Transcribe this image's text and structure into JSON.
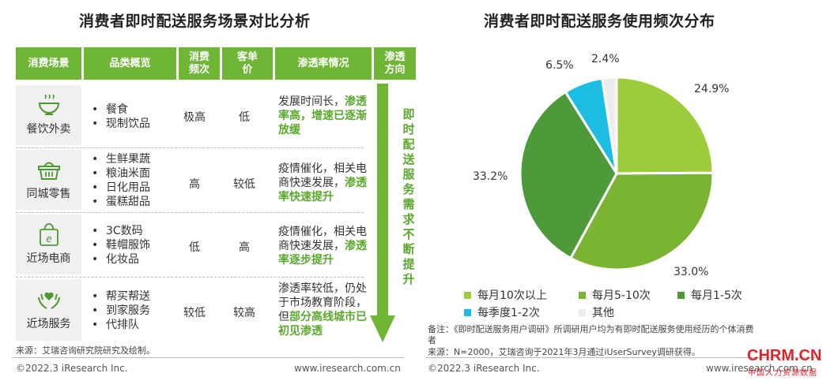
{
  "left": {
    "title": "消费者即时配送服务场景对比分析",
    "headers": [
      "消费场景",
      "品类概览",
      "消费频次",
      "客单价",
      "渗透率情况",
      "渗透方向"
    ],
    "header_lines": {
      "freq": [
        "消费",
        "频次"
      ],
      "price": [
        "客单",
        "价"
      ],
      "dir": [
        "渗透",
        "方向"
      ]
    },
    "rows": [
      {
        "scene": "餐饮外卖",
        "icon": "food-bowl-icon",
        "categories": [
          "餐食",
          "现制饮品"
        ],
        "frequency": "极高",
        "price": "低",
        "pen_plain": "发展时间长，",
        "pen_green": "渗透率高，增速已逐渐放缓"
      },
      {
        "scene": "同城零售",
        "icon": "basket-icon",
        "categories": [
          "生鲜果蔬",
          "粮油米面",
          "日化用品",
          "蛋糕甜品"
        ],
        "frequency": "高",
        "price": "较低",
        "pen_plain": "疫情催化，相关电商快速发展，",
        "pen_green": "渗透率快速提升"
      },
      {
        "scene": "近场电商",
        "icon": "shopping-bag-icon",
        "categories": [
          "3C数码",
          "鞋帽服饰",
          "化妆品"
        ],
        "frequency": "低",
        "price": "高",
        "pen_plain": "疫情催化，相关电商快速发展，",
        "pen_green": "渗透率逐步提升"
      },
      {
        "scene": "近场服务",
        "icon": "hands-heart-icon",
        "categories": [
          "帮买帮送",
          "到家服务",
          "代排队"
        ],
        "frequency": "较低",
        "price": "较高",
        "pen_plain": "渗透率较低，仍处于市场教育阶段，但",
        "pen_green": "部分高线城市已初见渗透"
      }
    ],
    "arrow_text": "即时配送服务需求不断提升",
    "source": "来源：艾瑞咨询研究院研究及绘制。",
    "copyright": "©2022.3 iResearch Inc.",
    "website": "www.iresearch.com.cn"
  },
  "right": {
    "title": "消费者即时配送服务使用频次分布",
    "note1": "备注：《即时配送服务用户调研》所调研用户均为有即时配送服务使用经历的个体消费",
    "note1b": "者",
    "note2": "来源：N=2000，艾瑞咨询于2021年3月通过iUserSurvey调研获得。",
    "copyright": "©2022.3 iResearch Inc.",
    "website": "www.iresearch.com.cn",
    "watermark": "CHRM.CN",
    "watermark_sub": "中国人力资源数据"
  },
  "chart_data": {
    "type": "pie",
    "title": "消费者即时配送服务使用频次分布",
    "slices": [
      {
        "label": "每月10次以上",
        "value": 24.9,
        "display": "24.9%",
        "color": "#9dcb3c"
      },
      {
        "label": "每月5-10次",
        "value": 33.0,
        "display": "33.0%",
        "color": "#7ab432"
      },
      {
        "label": "每月1-5次",
        "value": 33.2,
        "display": "33.2%",
        "color": "#4e9a3a"
      },
      {
        "label": "每季度1-2次",
        "value": 6.5,
        "display": "6.5%",
        "color": "#1bbde3"
      },
      {
        "label": "其他",
        "value": 2.4,
        "display": "2.4%",
        "color": "#ececec"
      }
    ],
    "legend_placement": "bottom"
  },
  "colors": {
    "accent_green": "#6fb536",
    "text_green": "#5aa82d"
  }
}
